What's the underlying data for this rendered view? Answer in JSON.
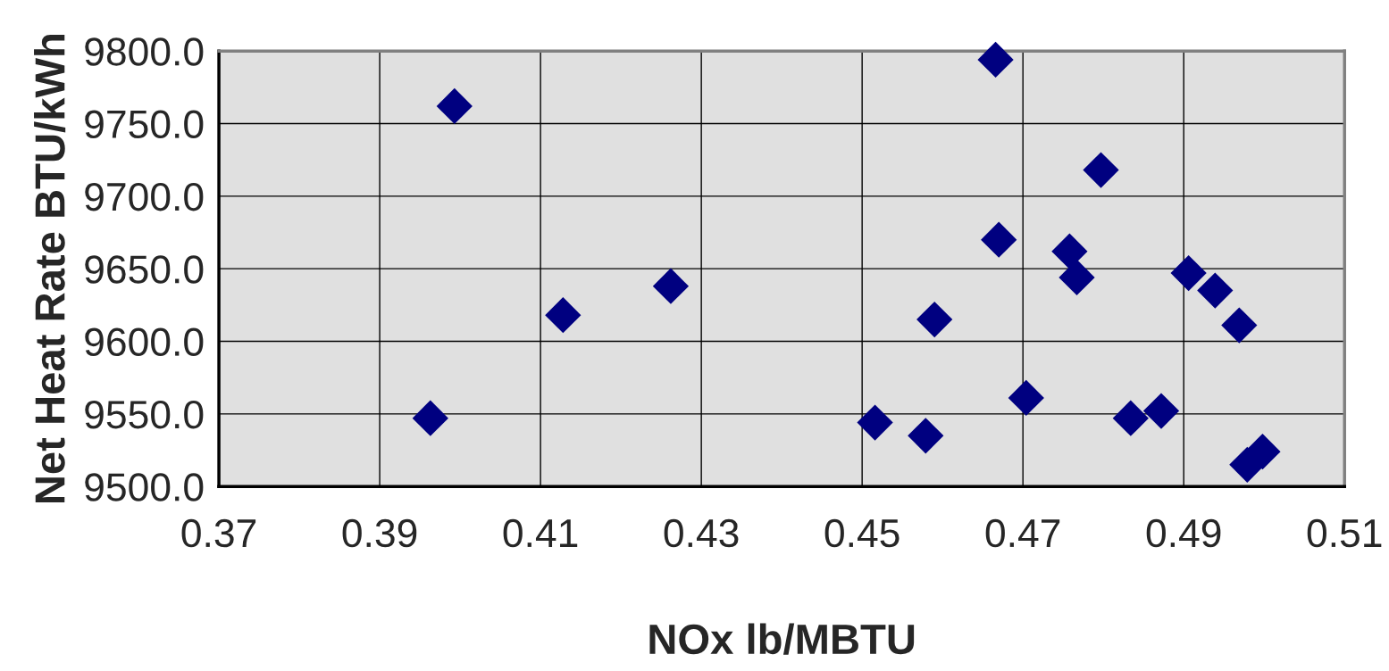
{
  "chart_data": {
    "type": "scatter",
    "xlabel": "NOx lb/MBTU",
    "ylabel": "Net Heat Rate BTU/kWh",
    "x": [
      0.3993,
      0.3963,
      0.4128,
      0.4262,
      0.4516,
      0.4579,
      0.459,
      0.4666,
      0.467,
      0.4704,
      0.4758,
      0.4767,
      0.4797,
      0.4834,
      0.4872,
      0.4906,
      0.4939,
      0.4969,
      0.4979,
      0.4998
    ],
    "series": [
      {
        "color": "#000080",
        "values": [
          9762,
          9547,
          9618,
          9638,
          9544,
          9535,
          9615,
          9794,
          9670,
          9561,
          9662,
          9644,
          9718,
          9547,
          9552,
          9647,
          9635,
          9611,
          9515,
          9524
        ]
      }
    ],
    "xlim": [
      0.37,
      0.51
    ],
    "xticks": [
      0.37,
      0.39,
      0.41,
      0.43,
      0.45,
      0.47,
      0.49,
      0.51
    ],
    "ylim": [
      9500,
      9800
    ],
    "yticks": [
      {
        "value": 9500,
        "label": "9500.0"
      },
      {
        "value": 9550,
        "label": "9550.0"
      },
      {
        "value": 9600,
        "label": "9600.0"
      },
      {
        "value": 9650,
        "label": "9650.0"
      },
      {
        "value": 9700,
        "label": "9700.0"
      },
      {
        "value": 9750,
        "label": "9750.0"
      },
      {
        "value": 9800,
        "label": "9800.0"
      }
    ],
    "grid": true,
    "marker": "diamond"
  }
}
